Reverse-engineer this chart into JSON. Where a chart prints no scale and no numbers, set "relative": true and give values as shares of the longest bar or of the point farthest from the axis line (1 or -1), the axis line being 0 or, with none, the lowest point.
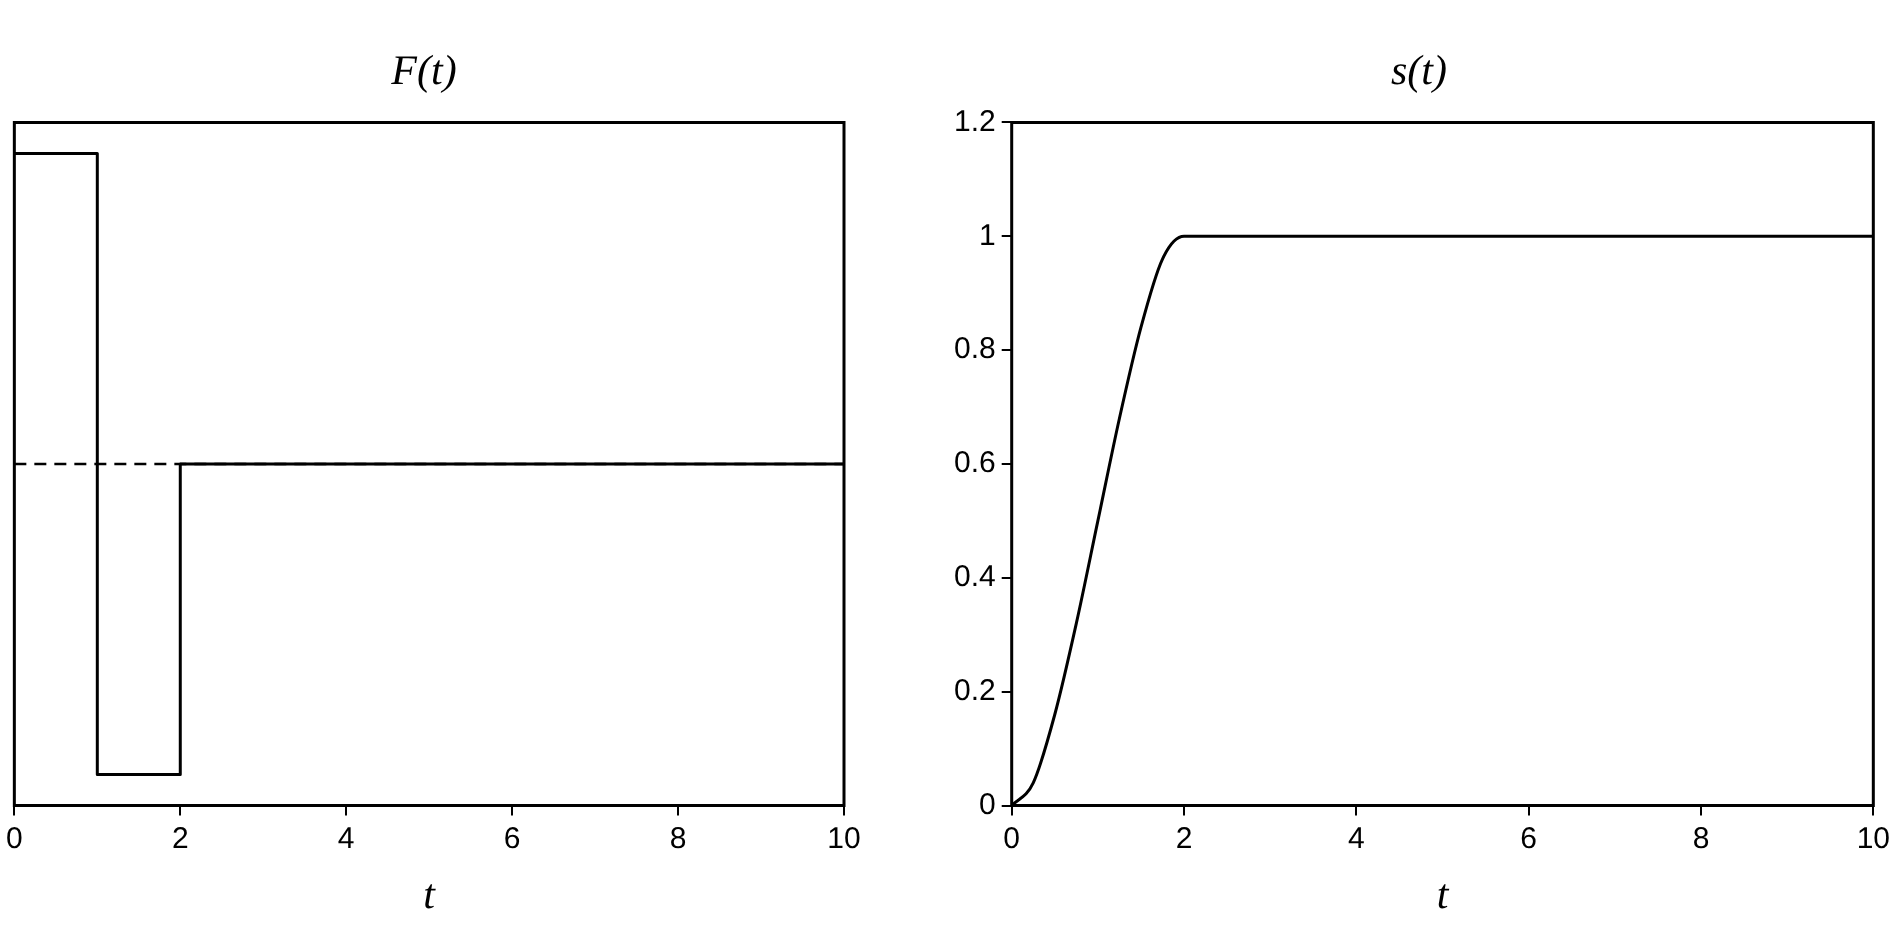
{
  "chart_data": [
    {
      "type": "step",
      "title": "F(t)",
      "xlabel": "t",
      "x": [
        0,
        1,
        2,
        10
      ],
      "values": [
        1,
        -1,
        0,
        0
      ],
      "color": "#000000",
      "relative": true,
      "xlim": [
        0,
        10
      ],
      "xticks": [
        0,
        2,
        4,
        6,
        8,
        10
      ],
      "tick_labels": "x",
      "ref_lines": [
        {
          "axis": "y",
          "value": 0,
          "line_style": "dashed",
          "color": "#000000"
        }
      ]
    },
    {
      "type": "line",
      "title": "s(t)",
      "xlabel": "t",
      "x": [
        0,
        0.25,
        0.5,
        0.75,
        1,
        1.25,
        1.5,
        1.75,
        2,
        10
      ],
      "values": [
        0,
        0.04,
        0.16,
        0.32,
        0.5,
        0.68,
        0.84,
        0.96,
        1,
        1
      ],
      "color": "#000000",
      "xlim": [
        0,
        10
      ],
      "xticks": [
        0,
        2,
        4,
        6,
        8,
        10
      ],
      "ylim": [
        0,
        1.2
      ],
      "yticks": [
        0,
        0.2,
        0.4,
        0.6,
        0.8,
        1,
        1.2
      ]
    }
  ]
}
